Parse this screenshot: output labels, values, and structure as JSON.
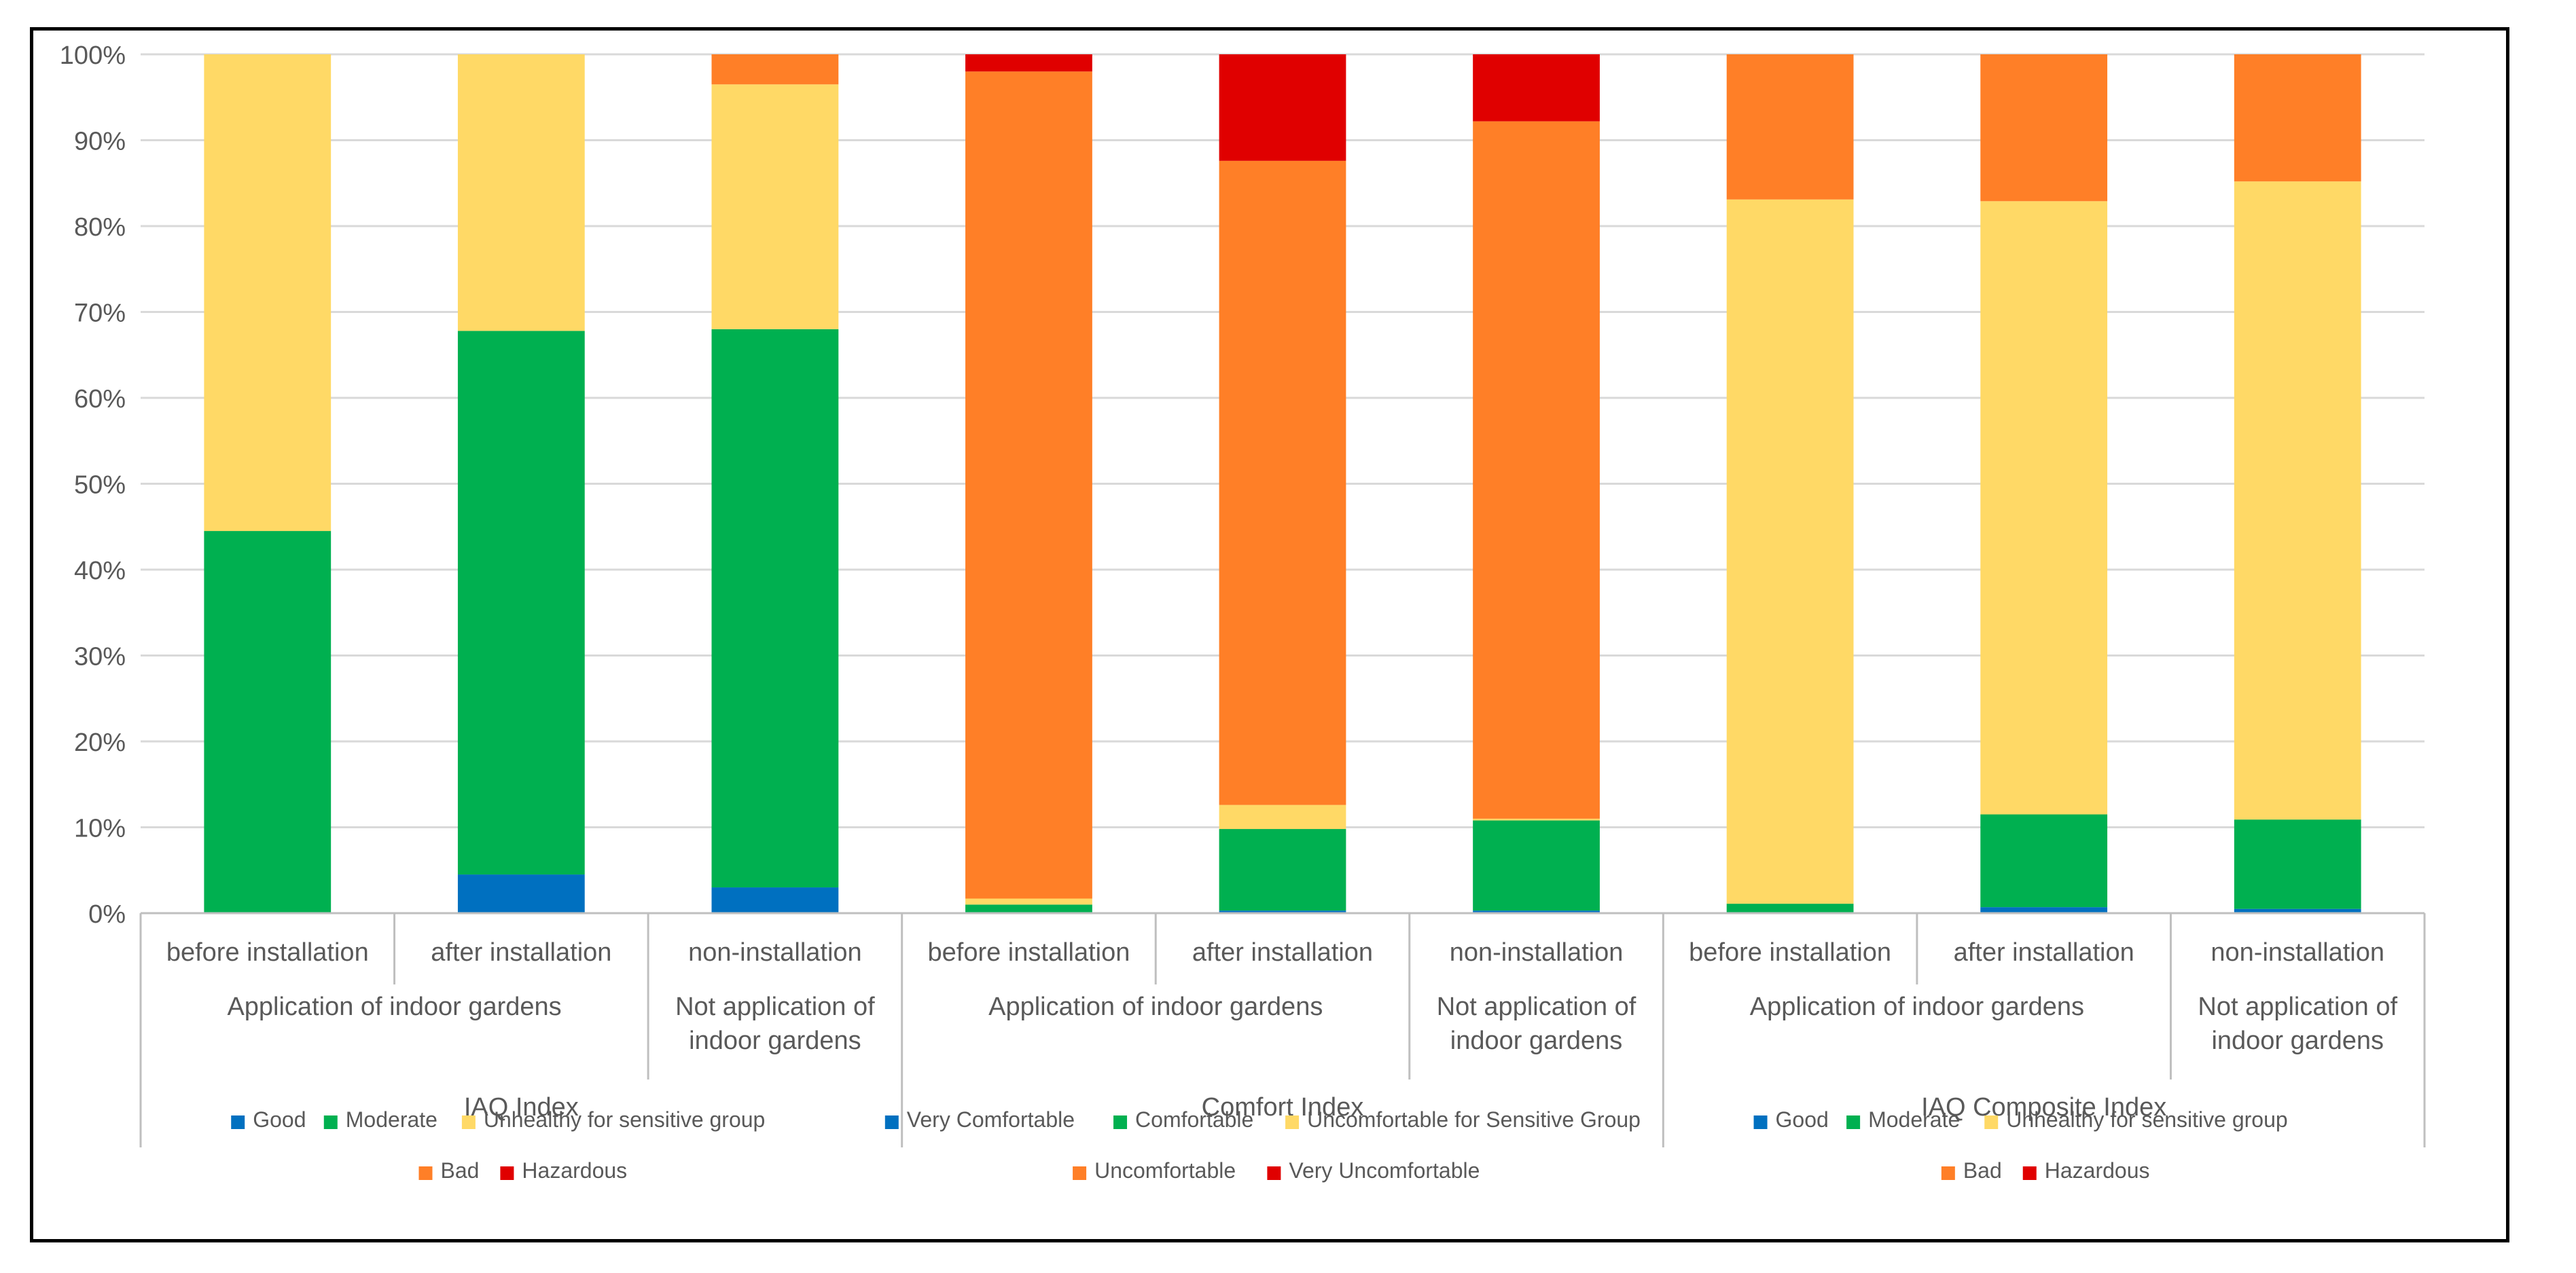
{
  "chart_data": {
    "type": "bar",
    "stacked": true,
    "percent": true,
    "ylim": [
      0,
      100
    ],
    "yticks": [
      "0%",
      "10%",
      "20%",
      "30%",
      "40%",
      "50%",
      "60%",
      "70%",
      "80%",
      "90%",
      "100%"
    ],
    "grid": true,
    "legend_position": "bottom",
    "groups": [
      {
        "name": "IAQ Index",
        "subgroups": [
          {
            "name": "Application of indoor gardens",
            "categories": [
              "before installation",
              "after installation"
            ]
          },
          {
            "name": "Not application of indoor gardens",
            "categories": [
              "non-installation"
            ]
          }
        ],
        "series": [
          {
            "name": "Good",
            "color": "#0070C0",
            "values": [
              0,
              4.5,
              3
            ]
          },
          {
            "name": "Moderate",
            "color": "#00B050",
            "values": [
              44.5,
              63.3,
              65
            ]
          },
          {
            "name": "Unhealthy for sensitive group",
            "color": "#FFD966",
            "values": [
              55.5,
              32.2,
              28.5
            ]
          },
          {
            "name": "Bad",
            "color": "#FF7F27",
            "values": [
              0,
              0,
              3.5
            ]
          },
          {
            "name": "Hazardous",
            "color": "#E00000",
            "values": [
              0,
              0,
              0
            ]
          }
        ]
      },
      {
        "name": "Comfort Index",
        "subgroups": [
          {
            "name": "Application of indoor gardens",
            "categories": [
              "before installation",
              "after installation"
            ]
          },
          {
            "name": "Not application of indoor gardens",
            "categories": [
              "non-installation"
            ]
          }
        ],
        "series": [
          {
            "name": "Very Comfortable",
            "color": "#0070C0",
            "values": [
              0,
              0.3,
              0.3
            ]
          },
          {
            "name": "Comfortable",
            "color": "#00B050",
            "values": [
              1,
              9.5,
              10.5
            ]
          },
          {
            "name": "Uncomfortable for Sensitive Group",
            "color": "#FFD966",
            "values": [
              0.7,
              2.8,
              0.2
            ]
          },
          {
            "name": "Uncomfortable",
            "color": "#FF7F27",
            "values": [
              96.3,
              75,
              81.2
            ]
          },
          {
            "name": "Very Uncomfortable",
            "color": "#E00000",
            "values": [
              2,
              12.4,
              7.8
            ]
          }
        ]
      },
      {
        "name": "IAQ Composite Index",
        "subgroups": [
          {
            "name": "Application of indoor gardens",
            "categories": [
              "before installation",
              "after installation"
            ]
          },
          {
            "name": "Not application of indoor gardens",
            "categories": [
              "non-installation"
            ]
          }
        ],
        "series": [
          {
            "name": "Good",
            "color": "#0070C0",
            "values": [
              0,
              0.7,
              0.5
            ]
          },
          {
            "name": "Moderate",
            "color": "#00B050",
            "values": [
              1.1,
              10.8,
              10.4
            ]
          },
          {
            "name": "Unhealthy for sensitive group",
            "color": "#FFD966",
            "values": [
              82,
              71.4,
              74.3
            ]
          },
          {
            "name": "Bad",
            "color": "#FF7F27",
            "values": [
              16.9,
              17.1,
              14.8
            ]
          },
          {
            "name": "Hazardous",
            "color": "#E00000",
            "values": [
              0,
              0,
              0
            ]
          }
        ]
      }
    ]
  }
}
